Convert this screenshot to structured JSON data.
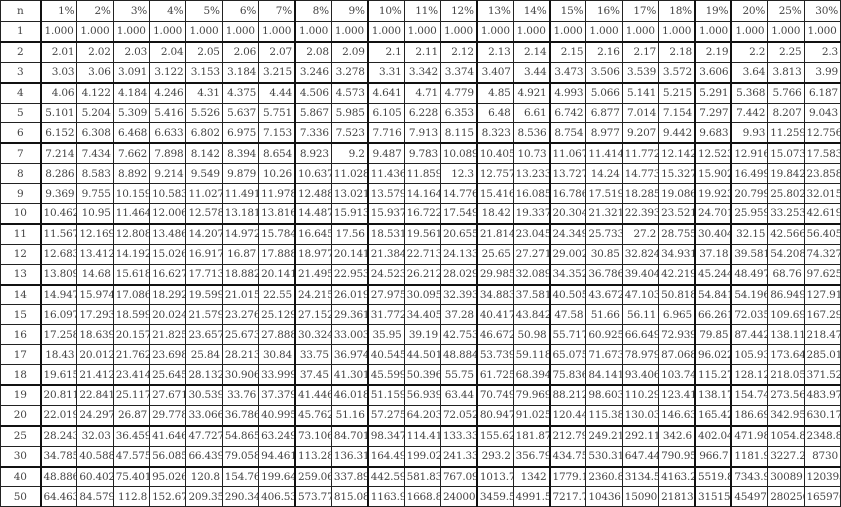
{
  "table": {
    "headers": [
      "n",
      "1%",
      "2%",
      "3%",
      "4%",
      "5%",
      "6%",
      "7%",
      "8%",
      "9%",
      "10%",
      "11%",
      "12%",
      "13%",
      "14%",
      "15%",
      "16%",
      "17%",
      "18%",
      "19%",
      "20%",
      "25%",
      "30%"
    ],
    "rows": [
      [
        "1",
        "1.000",
        "1.000",
        "1.000",
        "1.000",
        "1.000",
        "1.000",
        "1.000",
        "1.000",
        "1.000",
        "1.000",
        "1.000",
        "1.000",
        "1.000",
        "1.000",
        "1.000",
        "1.000",
        "1.000",
        "1.000",
        "1.000",
        "1.000",
        "1.000",
        "1.000"
      ],
      [
        "2",
        "2.01",
        "2.02",
        "2.03",
        "2.04",
        "2.05",
        "2.06",
        "2.07",
        "2.08",
        "2.09",
        "2.1",
        "2.11",
        "2.12",
        "2.13",
        "2.14",
        "2.15",
        "2.16",
        "2.17",
        "2.18",
        "2.19",
        "2.2",
        "2.25",
        "2.3"
      ],
      [
        "3",
        "3.03",
        "3.06",
        "3.091",
        "3.122",
        "3.153",
        "3.184",
        "3.215",
        "3.246",
        "3.278",
        "3.31",
        "3.342",
        "3.374",
        "3.407",
        "3.44",
        "3.473",
        "3.506",
        "3.539",
        "3.572",
        "3.606",
        "3.64",
        "3.813",
        "3.99"
      ],
      [
        "4",
        "4.06",
        "4.122",
        "4.184",
        "4.246",
        "4.31",
        "4.375",
        "4.44",
        "4.506",
        "4.573",
        "4.641",
        "4.71",
        "4.779",
        "4.85",
        "4.921",
        "4.993",
        "5.066",
        "5.141",
        "5.215",
        "5.291",
        "5.368",
        "5.766",
        "6.187"
      ],
      [
        "5",
        "5.101",
        "5.204",
        "5.309",
        "5.416",
        "5.526",
        "5.637",
        "5.751",
        "5.867",
        "5.985",
        "6.105",
        "6.228",
        "6.353",
        "6.48",
        "6.61",
        "6.742",
        "6.877",
        "7.014",
        "7.154",
        "7.297",
        "7.442",
        "8.207",
        "9.043"
      ],
      [
        "6",
        "6.152",
        "6.308",
        "6.468",
        "6.633",
        "6.802",
        "6.975",
        "7.153",
        "7.336",
        "7.523",
        "7.716",
        "7.913",
        "8.115",
        "8.323",
        "8.536",
        "8.754",
        "8.977",
        "9.207",
        "9.442",
        "9.683",
        "9.93",
        "11.259",
        "12.756"
      ],
      [
        "7",
        "7.214",
        "7.434",
        "7.662",
        "7.898",
        "8.142",
        "8.394",
        "8.654",
        "8.923",
        "9.2",
        "9.487",
        "9.783",
        "10.089",
        "10.405",
        "10.73",
        "11.067",
        "11.414",
        "11.772",
        "12.142",
        "12.523",
        "12.916",
        "15.073",
        "17.583"
      ],
      [
        "8",
        "8.286",
        "8.583",
        "8.892",
        "9.214",
        "9.549",
        "9.879",
        "10.26",
        "10.637",
        "11.028",
        "11.436",
        "11.859",
        "12.3",
        "12.757",
        "13.233",
        "13.727",
        "14.24",
        "14.773",
        "15.327",
        "15.902",
        "16.499",
        "19.842",
        "23.858"
      ],
      [
        "9",
        "9.369",
        "9.755",
        "10.159",
        "10.583",
        "11.027",
        "11.491",
        "11.978",
        "12.488",
        "13.021",
        "13.579",
        "14.164",
        "14.776",
        "15.416",
        "16.085",
        "16.786",
        "17.519",
        "18.285",
        "19.086",
        "19.923",
        "20.799",
        "25.802",
        "32.015"
      ],
      [
        "10",
        "10.462",
        "10.95",
        "11.464",
        "12.006",
        "12.578",
        "13.181",
        "13.816",
        "14.487",
        "15.913",
        "15.937",
        "16.722",
        "17.549",
        "18.42",
        "19.337",
        "20.304",
        "21.321",
        "22.393",
        "23.521",
        "24.701",
        "25.959",
        "33.253",
        "42.619"
      ],
      [
        "11",
        "11.567",
        "12.169",
        "12.808",
        "13.486",
        "14.207",
        "14.972",
        "15.784",
        "16.645",
        "17.56",
        "18.531",
        "19.561",
        "20.655",
        "21.814",
        "23.045",
        "24.349",
        "25.733",
        "27.2",
        "28.755",
        "30.404",
        "32.15",
        "42.566",
        "56.405"
      ],
      [
        "12",
        "12.683",
        "13.412",
        "14.192",
        "15.026",
        "16.917",
        "16.87",
        "17.888",
        "18.977",
        "20.141",
        "21.384",
        "22.713",
        "24.133",
        "25.65",
        "27.271",
        "29.002",
        "30.85",
        "32.824",
        "34.931",
        "37.18",
        "39.581",
        "54.208",
        "74.327"
      ],
      [
        "13",
        "13.809",
        "14.68",
        "15.618",
        "16.627",
        "17.713",
        "18.882",
        "20.141",
        "21.495",
        "22.953",
        "24.523",
        "26.212",
        "28.029",
        "29.985",
        "32.089",
        "34.352",
        "36.786",
        "39.404",
        "42.219",
        "45.244",
        "48.497",
        "68.76",
        "97.625"
      ],
      [
        "14",
        "14.947",
        "15.974",
        "17.086",
        "18.292",
        "19.599",
        "21.015",
        "22.55",
        "24.215",
        "26.019",
        "27.975",
        "30.095",
        "32.393",
        "34.883",
        "37.581",
        "40.505",
        "43.672",
        "47.103",
        "50.818",
        "54.841",
        "54.196",
        "86.949",
        "127.91"
      ],
      [
        "15",
        "16.097",
        "17.293",
        "18.599",
        "20.024",
        "21.579",
        "23.276",
        "25.129",
        "27.152",
        "29.361",
        "31.772",
        "34.405",
        "37.28",
        "40.417",
        "43.842",
        "47.58",
        "51.66",
        "56.11",
        "6.965",
        "66.261",
        "72.035",
        "109.69",
        "167.29"
      ],
      [
        "16",
        "17.258",
        "18.639",
        "20.157",
        "21.825",
        "23.657",
        "25.673",
        "27.888",
        "30.324",
        "33.003",
        "35.95",
        "39.19",
        "42.753",
        "46.672",
        "50.98",
        "55.717",
        "60.925",
        "66.649",
        "72.939",
        "79.85",
        "87.442",
        "138.11",
        "218.47"
      ],
      [
        "17",
        "18.43",
        "20.012",
        "21.762",
        "23.698",
        "25.84",
        "28.213",
        "30.84",
        "33.75",
        "36.974",
        "40.545",
        "44.501",
        "48.884",
        "53.739",
        "59.118",
        "65.075",
        "71.673",
        "78.979",
        "87.068",
        "96.022",
        "105.93",
        "173.64",
        "285.01"
      ],
      [
        "18",
        "19.615",
        "21.412",
        "23.414",
        "25.645",
        "28.132",
        "30.906",
        "33.999",
        "37.45",
        "41.301",
        "45.599",
        "50.396",
        "55.75",
        "61.725",
        "68.394",
        "75.836",
        "84.141",
        "93.406",
        "103.74",
        "115.27",
        "128.12",
        "218.05",
        "371.52"
      ],
      [
        "19",
        "20.811",
        "22.841",
        "25.117",
        "27.671",
        "30.539",
        "33.76",
        "37.379",
        "41.446",
        "46.018",
        "51.159",
        "56.939",
        "63.44",
        "70.749",
        "79.969",
        "88.212",
        "98.603",
        "110.29",
        "123.41",
        "138.17",
        "154.74",
        "273.56",
        "483.97"
      ],
      [
        "20",
        "22.019",
        "24.297",
        "26.87",
        "29.778",
        "33.066",
        "36.786",
        "40.995",
        "45.762",
        "51.16",
        "57.275",
        "64.203",
        "72.052",
        "80.947",
        "91.025",
        "120.44",
        "115.38",
        "130.03",
        "146.63",
        "165.42",
        "186.69",
        "342.95",
        "630.17"
      ],
      [
        "25",
        "28.243",
        "32.03",
        "36.459",
        "41.646",
        "47.727",
        "54.865",
        "63.249",
        "73.106",
        "84.701",
        "98.347",
        "114.41",
        "133.33",
        "155.62",
        "181.87",
        "212.79",
        "249.21",
        "292.11",
        "342.6",
        "402.04",
        "471.98",
        "1054.8",
        "2348.8"
      ],
      [
        "30",
        "34.785",
        "40.588",
        "47.575",
        "56.085",
        "66.439",
        "79.058",
        "94.461",
        "113.28",
        "136.31",
        "164.49",
        "199.02",
        "241.33",
        "293.2",
        "356.79",
        "434.75",
        "530.31",
        "647.44",
        "790.95",
        "966.7",
        "1181.9",
        "3227.2",
        "8730"
      ],
      [
        "40",
        "48.886",
        "60.402",
        "75.401",
        "95.026",
        "120.8",
        "154.76",
        "199.64",
        "259.06",
        "337.89",
        "442.59",
        "581.83",
        "767.09",
        "1013.7",
        "1342",
        "1779.1",
        "2360.8",
        "3134.5",
        "4163.2",
        "5519.8",
        "7343.9",
        "30089",
        "120393"
      ],
      [
        "50",
        "64.463",
        "84.579",
        "112.8",
        "152.67",
        "209.35",
        "290.34",
        "406.53",
        "573.77",
        "815.08",
        "1163.9",
        "1668.8",
        "24000",
        "3459.5",
        "4991.5",
        "7217.7",
        "10436",
        "15090",
        "21813",
        "31515",
        "45497",
        "280256",
        "165976"
      ]
    ]
  }
}
